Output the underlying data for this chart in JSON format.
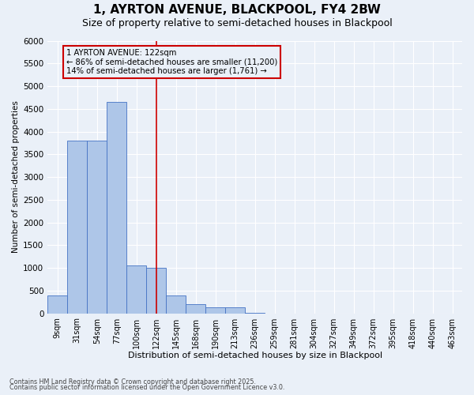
{
  "title1": "1, AYRTON AVENUE, BLACKPOOL, FY4 2BW",
  "title2": "Size of property relative to semi-detached houses in Blackpool",
  "xlabel": "Distribution of semi-detached houses by size in Blackpool",
  "ylabel": "Number of semi-detached properties",
  "categories": [
    "9sqm",
    "31sqm",
    "54sqm",
    "77sqm",
    "100sqm",
    "122sqm",
    "145sqm",
    "168sqm",
    "190sqm",
    "213sqm",
    "236sqm",
    "259sqm",
    "281sqm",
    "304sqm",
    "327sqm",
    "349sqm",
    "372sqm",
    "395sqm",
    "418sqm",
    "440sqm",
    "463sqm"
  ],
  "values": [
    400,
    3800,
    3800,
    4650,
    1050,
    1000,
    400,
    200,
    130,
    130,
    10,
    0,
    0,
    0,
    0,
    0,
    0,
    0,
    0,
    0,
    0
  ],
  "bar_color": "#aec6e8",
  "bar_edge_color": "#4472c4",
  "vline_idx": 5,
  "vline_color": "#cc0000",
  "annotation_line1": "1 AYRTON AVENUE: 122sqm",
  "annotation_line2": "← 86% of semi-detached houses are smaller (11,200)",
  "annotation_line3": "14% of semi-detached houses are larger (1,761) →",
  "annotation_box_edgecolor": "#cc0000",
  "ylim": [
    0,
    6000
  ],
  "yticks": [
    0,
    500,
    1000,
    1500,
    2000,
    2500,
    3000,
    3500,
    4000,
    4500,
    5000,
    5500,
    6000
  ],
  "footnote1": "Contains HM Land Registry data © Crown copyright and database right 2025.",
  "footnote2": "Contains public sector information licensed under the Open Government Licence v3.0.",
  "bg_color": "#eaf0f8",
  "grid_color": "#ffffff",
  "title1_fontsize": 11,
  "title2_fontsize": 9,
  "bar_fontsize": 7,
  "ylabel_fontsize": 7.5,
  "xlabel_fontsize": 8,
  "ytick_fontsize": 7.5,
  "xtick_fontsize": 7
}
